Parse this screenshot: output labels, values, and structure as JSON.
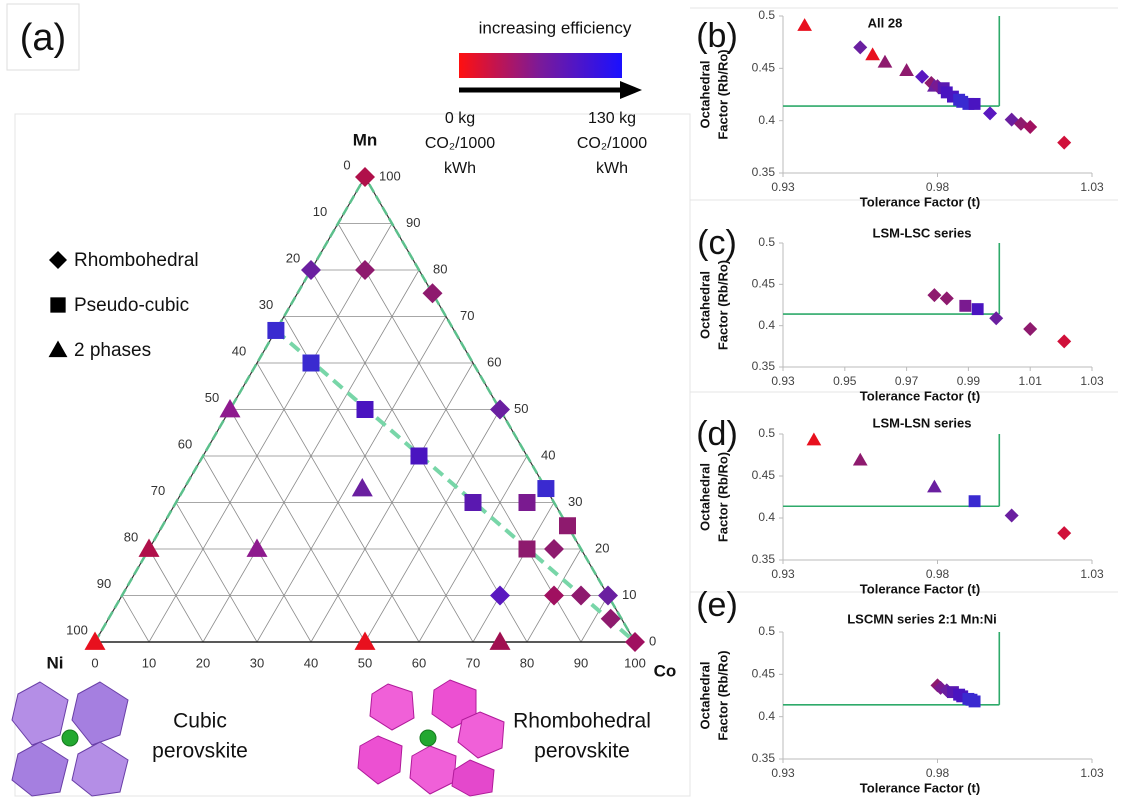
{
  "chart_data": [
    {
      "type": "ternary",
      "panel_label": "(a)",
      "vertices": {
        "top": "Mn",
        "left": "Ni",
        "right": "Co"
      },
      "vertex_colors": {
        "top": "#c0103c",
        "left": "#d0102c",
        "right": "#8e1a6e"
      },
      "ticks": [
        0,
        10,
        20,
        30,
        40,
        50,
        60,
        70,
        80,
        90,
        100
      ],
      "edge_color": "#5cc08c",
      "legend": {
        "labels": [
          "Rhombohedral",
          "Pseudo-cubic",
          "2 phases"
        ],
        "markers": [
          "diamond",
          "square",
          "triangle"
        ]
      },
      "colorbar": {
        "title": "increasing efficiency",
        "colors": [
          "#ff1010",
          "#7a1a9a",
          "#1a10ff"
        ],
        "low_label": [
          "0 kg",
          "CO₂/1000",
          "kWh"
        ],
        "high_label": [
          "130 kg",
          "CO₂/1000",
          "kWh"
        ]
      },
      "guide_line": {
        "Co": [
          0,
          100
        ],
        "Mn": [
          67,
          0
        ],
        "color": "#78d6a8"
      },
      "points": {
        "Co": [
          0,
          0,
          10,
          25,
          0,
          10,
          25,
          50,
          0,
          40,
          33,
          55,
          65,
          67,
          75,
          70,
          75,
          0,
          20,
          70,
          80,
          85,
          90,
          93,
          100,
          0,
          50,
          75
        ],
        "Mn": [
          100,
          80,
          80,
          75,
          67,
          60,
          50,
          50,
          50,
          40,
          33,
          30,
          30,
          33,
          25,
          20,
          20,
          20,
          20,
          10,
          10,
          10,
          10,
          5,
          0,
          0,
          0,
          0
        ],
        "markers": [
          "diamond",
          "diamond",
          "diamond",
          "diamond",
          "square",
          "square",
          "square",
          "diamond",
          "triangle",
          "square",
          "triangle",
          "square",
          "square",
          "square",
          "square",
          "square",
          "diamond",
          "triangle",
          "triangle",
          "diamond",
          "diamond",
          "diamond",
          "diamond",
          "diamond",
          "diamond",
          "triangle",
          "triangle",
          "triangle"
        ],
        "colors": [
          "#b0104a",
          "#6a1fa0",
          "#8e1a6e",
          "#8e1a6e",
          "#3a2ad0",
          "#3a2ad0",
          "#4a14c0",
          "#6a1fa0",
          "#8e1a8e",
          "#4a14c0",
          "#6a1fa0",
          "#5a18b0",
          "#7a1a90",
          "#3a2ad0",
          "#8e1a6e",
          "#8e1a6e",
          "#8e1a6e",
          "#b0104a",
          "#8e1a8e",
          "#5a18c0",
          "#a01060",
          "#8e1a6e",
          "#6a1fa0",
          "#8e1a6e",
          "#a01060",
          "#e8101e",
          "#e8101e",
          "#a01050"
        ]
      }
    },
    {
      "type": "scatter",
      "panel_label": "(b)",
      "title": "All 28",
      "xlabel": "Tolerance Factor (t)",
      "ylabel": [
        "Octahedral",
        "Factor (Rb/Ro)"
      ],
      "xlim": [
        0.93,
        1.03
      ],
      "xticks": [
        0.93,
        0.98,
        1.03
      ],
      "ylim": [
        0.35,
        0.5
      ],
      "yticks": [
        0.35,
        0.4,
        0.45,
        0.5
      ],
      "threshold": {
        "t": 1.0,
        "octahedral": 0.414,
        "color": "#2eaa6a"
      },
      "x": [
        0.937,
        0.955,
        0.959,
        0.963,
        0.97,
        0.975,
        0.978,
        0.979,
        0.98,
        0.982,
        0.983,
        0.985,
        0.987,
        0.988,
        0.99,
        0.992,
        0.997,
        1.004,
        1.007,
        1.01,
        1.021
      ],
      "values": [
        0.491,
        0.47,
        0.463,
        0.456,
        0.448,
        0.442,
        0.436,
        0.433,
        0.433,
        0.431,
        0.427,
        0.423,
        0.42,
        0.418,
        0.416,
        0.416,
        0.407,
        0.401,
        0.397,
        0.394,
        0.379
      ],
      "markers": [
        "triangle",
        "diamond",
        "triangle",
        "triangle",
        "triangle",
        "diamond",
        "diamond",
        "triangle",
        "diamond",
        "square",
        "square",
        "square",
        "square",
        "square",
        "square",
        "square",
        "diamond",
        "diamond",
        "diamond",
        "diamond",
        "diamond"
      ],
      "colors": [
        "#e8101e",
        "#6a1fa0",
        "#e8101e",
        "#8e1a6e",
        "#8e1a6e",
        "#5a18c0",
        "#8e1a6e",
        "#6a1fa0",
        "#7a1a90",
        "#5a18b0",
        "#4a14c0",
        "#4a14c0",
        "#3a2ad0",
        "#3a2ad0",
        "#3a2ad0",
        "#4a14c0",
        "#5a18c0",
        "#6a1fa0",
        "#8e1a6e",
        "#a01060",
        "#d0103a"
      ]
    },
    {
      "type": "scatter",
      "panel_label": "(c)",
      "title": "LSM-LSC series",
      "xlabel": "Tolerance Factor (t)",
      "ylabel": [
        "Octahedral",
        "Factor (Rb/Ro)"
      ],
      "xlim": [
        0.93,
        1.03
      ],
      "xticks": [
        0.93,
        0.95,
        0.97,
        0.99,
        1.01,
        1.03
      ],
      "ylim": [
        0.35,
        0.5
      ],
      "yticks": [
        0.35,
        0.4,
        0.45,
        0.5
      ],
      "threshold": {
        "t": 1.0,
        "octahedral": 0.414,
        "color": "#2eaa6a"
      },
      "x": [
        0.979,
        0.983,
        0.989,
        0.993,
        0.999,
        1.01,
        1.021
      ],
      "values": [
        0.437,
        0.433,
        0.424,
        0.42,
        0.409,
        0.396,
        0.381
      ],
      "markers": [
        "diamond",
        "diamond",
        "square",
        "square",
        "diamond",
        "diamond",
        "diamond"
      ],
      "colors": [
        "#8e1a6e",
        "#8e1a6e",
        "#7a1a90",
        "#4a14c0",
        "#6a1fa0",
        "#8e1a6e",
        "#d0103a"
      ]
    },
    {
      "type": "scatter",
      "panel_label": "(d)",
      "title": "LSM-LSN series",
      "xlabel": "Tolerance Factor (t)",
      "ylabel": [
        "Octahedral",
        "Factor (Rb/Ro)"
      ],
      "xlim": [
        0.93,
        1.03
      ],
      "xticks": [
        0.93,
        0.98,
        1.03
      ],
      "ylim": [
        0.35,
        0.5
      ],
      "yticks": [
        0.35,
        0.4,
        0.45,
        0.5
      ],
      "threshold": {
        "t": 1.0,
        "octahedral": 0.414,
        "color": "#2eaa6a"
      },
      "x": [
        0.94,
        0.955,
        0.979,
        0.992,
        1.004,
        1.021
      ],
      "values": [
        0.493,
        0.469,
        0.437,
        0.42,
        0.403,
        0.382
      ],
      "markers": [
        "triangle",
        "triangle",
        "triangle",
        "square",
        "diamond",
        "diamond"
      ],
      "colors": [
        "#e8101e",
        "#8e1a6e",
        "#6a1fa0",
        "#3a2ad0",
        "#6a1fa0",
        "#d0103a"
      ]
    },
    {
      "type": "scatter",
      "panel_label": "(e)",
      "title": "LSCMN series 2:1 Mn:Ni",
      "xlabel": "Tolerance Factor (t)",
      "ylabel": [
        "Octahedral",
        "Factor (Rb/Ro)"
      ],
      "xlim": [
        0.93,
        1.03
      ],
      "xticks": [
        0.93,
        0.98,
        1.03
      ],
      "ylim": [
        0.35,
        0.5
      ],
      "yticks": [
        0.35,
        0.4,
        0.45,
        0.5
      ],
      "threshold": {
        "t": 1.0,
        "octahedral": 0.414,
        "color": "#2eaa6a"
      },
      "x": [
        0.98,
        0.981,
        0.983,
        0.985,
        0.987,
        0.988,
        0.99,
        0.991,
        0.992
      ],
      "values": [
        0.437,
        0.434,
        0.431,
        0.429,
        0.426,
        0.424,
        0.421,
        0.42,
        0.418
      ],
      "markers": [
        "diamond",
        "diamond",
        "diamond",
        "square",
        "square",
        "square",
        "square",
        "square",
        "square"
      ],
      "colors": [
        "#8e1a6e",
        "#7a1a90",
        "#6a1fa0",
        "#5a18b0",
        "#4a14c0",
        "#4a14c0",
        "#3a2ad0",
        "#3a2ad0",
        "#3a2ad0"
      ]
    }
  ],
  "illustrations": [
    {
      "label": [
        "Cubic",
        "perovskite"
      ]
    },
    {
      "label": [
        "Rhombohedral",
        "perovskite"
      ]
    }
  ]
}
